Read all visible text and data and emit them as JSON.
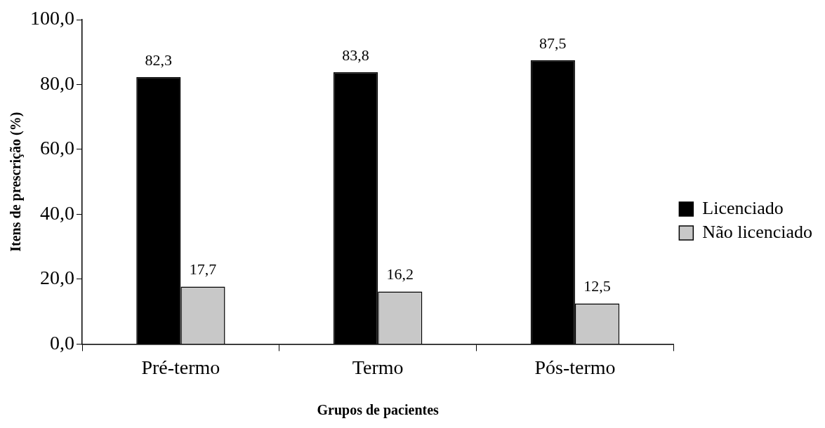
{
  "chart_data": {
    "type": "bar",
    "xlabel": "Grupos de pacientes",
    "ylabel": "Itens de prescrição (%)",
    "categories": [
      "Pré-termo",
      "Termo",
      "Pós-termo"
    ],
    "series": [
      {
        "name": "Licenciado",
        "color": "#000000",
        "values": [
          82.3,
          83.8,
          87.5
        ],
        "value_labels": [
          "82,3",
          "83,8",
          "87,5"
        ]
      },
      {
        "name": "Não licenciado",
        "color": "#c8c8c8",
        "values": [
          17.7,
          16.2,
          12.5
        ],
        "value_labels": [
          "17,7",
          "16,2",
          "12,5"
        ]
      }
    ],
    "ylim": [
      0,
      100
    ],
    "yticks": [
      {
        "value": 0,
        "label": "0,0"
      },
      {
        "value": 20,
        "label": "20,0"
      },
      {
        "value": 40,
        "label": "40,0"
      },
      {
        "value": 60,
        "label": "60,0"
      },
      {
        "value": 80,
        "label": "80,0"
      },
      {
        "value": 100,
        "label": "100,0"
      }
    ],
    "grid": false,
    "legend": "right"
  }
}
